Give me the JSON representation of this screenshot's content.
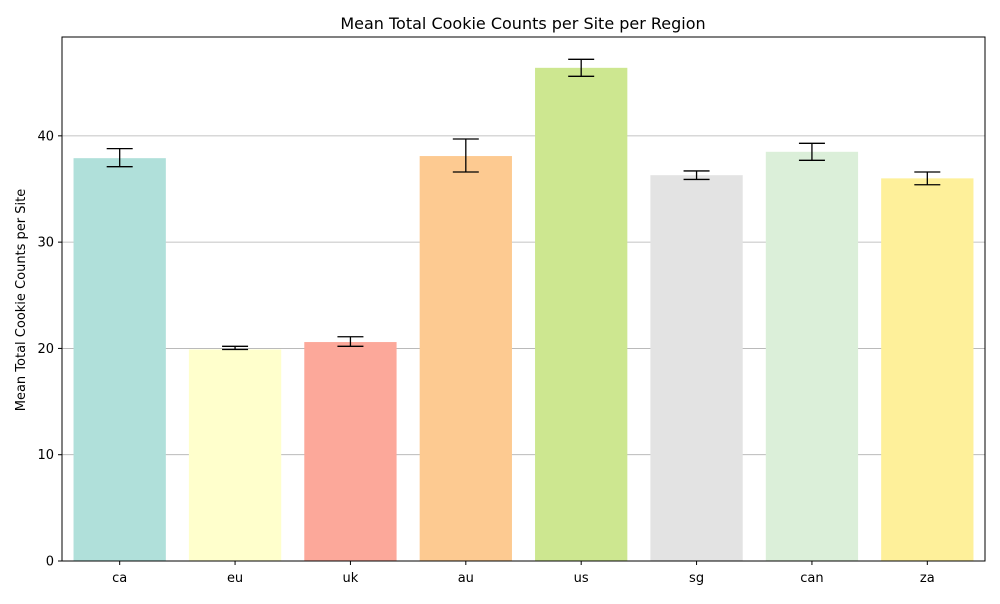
{
  "chart_data": {
    "type": "bar",
    "title": "Mean Total Cookie Counts per Site per Region",
    "xlabel": "",
    "ylabel": "Mean Total Cookie Counts per Site",
    "categories": [
      "ca",
      "eu",
      "uk",
      "au",
      "us",
      "sg",
      "can",
      "za"
    ],
    "values": [
      37.9,
      19.9,
      20.6,
      38.1,
      46.4,
      36.3,
      38.5,
      36.0
    ],
    "errors": [
      [
        37.1,
        38.8
      ],
      [
        19.9,
        20.2
      ],
      [
        20.2,
        21.1
      ],
      [
        36.6,
        39.7
      ],
      [
        45.6,
        47.2
      ],
      [
        35.9,
        36.7
      ],
      [
        37.7,
        39.3
      ],
      [
        35.4,
        36.6
      ]
    ],
    "colors": [
      "#b0e0da",
      "#ffffcc",
      "#fca89a",
      "#fdca91",
      "#cde790",
      "#e3e3e3",
      "#dbefd9",
      "#fef09a"
    ],
    "ylim": [
      0,
      49.3
    ],
    "yticks": [
      0,
      10,
      20,
      30,
      40
    ],
    "grid": "y-major"
  }
}
